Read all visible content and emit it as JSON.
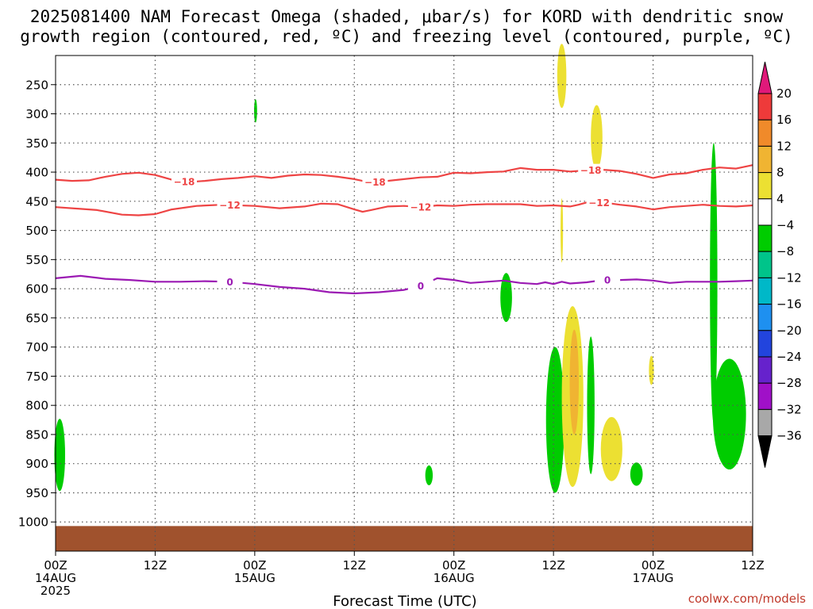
{
  "header": {
    "title_line1": "2025081400 NAM Forecast Omega (shaded, μbar/s) for KORD with dendritic snow",
    "title_line2": "growth region (contoured, red, ºC) and freezing level (contoured, purple, ºC)"
  },
  "footer": {
    "xlabel": "Forecast Time (UTC)",
    "credit": "coolwx.com/models"
  },
  "chart_data": {
    "type": "heatmap",
    "title": "2025081400 NAM Forecast Omega (shaded, μbar/s) for KORD with dendritic snow growth region (contoured, red, ºC) and freezing level (contoured, purple, ºC)",
    "xlabel": "Forecast Time (UTC)",
    "ylabel": "",
    "x_range_hours": [
      0,
      84
    ],
    "y_range_hpa": [
      200,
      1050
    ],
    "y_ticks": [
      250,
      300,
      350,
      400,
      450,
      500,
      550,
      600,
      650,
      700,
      750,
      800,
      850,
      900,
      950,
      1000
    ],
    "x_ticks": [
      {
        "hour": 0,
        "lines": [
          "00Z",
          "14AUG",
          "2025"
        ]
      },
      {
        "hour": 12,
        "lines": [
          "12Z"
        ]
      },
      {
        "hour": 24,
        "lines": [
          "00Z",
          "15AUG"
        ]
      },
      {
        "hour": 36,
        "lines": [
          "12Z"
        ]
      },
      {
        "hour": 48,
        "lines": [
          "00Z",
          "16AUG"
        ]
      },
      {
        "hour": 60,
        "lines": [
          "12Z"
        ]
      },
      {
        "hour": 72,
        "lines": [
          "00Z",
          "17AUG"
        ]
      },
      {
        "hour": 84,
        "lines": [
          "12Z"
        ]
      }
    ],
    "grid": true,
    "colorbar": {
      "position": "right",
      "labels": [
        "20",
        "16",
        "12",
        "8",
        "4",
        "−4",
        "−8",
        "−12",
        "−16",
        "−20",
        "−24",
        "−28",
        "−32",
        "−36"
      ],
      "bands": [
        {
          "range": [
            16,
            20
          ],
          "color": "#ee3a3a"
        },
        {
          "range": [
            12,
            16
          ],
          "color": "#f08a2a"
        },
        {
          "range": [
            8,
            12
          ],
          "color": "#f0b432"
        },
        {
          "range": [
            4,
            8
          ],
          "color": "#ece032"
        },
        {
          "range": [
            -4,
            4
          ],
          "color": "#ffffff"
        },
        {
          "range": [
            -8,
            -4
          ],
          "color": "#00cc00"
        },
        {
          "range": [
            -12,
            -8
          ],
          "color": "#00c48a"
        },
        {
          "range": [
            -16,
            -12
          ],
          "color": "#00b8c8"
        },
        {
          "range": [
            -20,
            -16
          ],
          "color": "#1e90f0"
        },
        {
          "range": [
            -24,
            -20
          ],
          "color": "#2244dd"
        },
        {
          "range": [
            -28,
            -24
          ],
          "color": "#6622cc"
        },
        {
          "range": [
            -32,
            -28
          ],
          "color": "#a010c8"
        },
        {
          "range": [
            -36,
            -32
          ],
          "color": "#a8a8a8"
        }
      ],
      "top_arrow_color": "#e0197a",
      "bottom_arrow_color": "#000000"
    },
    "contours": [
      {
        "name": "-18",
        "color": "#ee4444",
        "points": [
          [
            0,
            413
          ],
          [
            2,
            415
          ],
          [
            4,
            414
          ],
          [
            6,
            408
          ],
          [
            8,
            403
          ],
          [
            10,
            401
          ],
          [
            12,
            405
          ],
          [
            14,
            413
          ],
          [
            16,
            417
          ],
          [
            18,
            415
          ],
          [
            20,
            412
          ],
          [
            22,
            410
          ],
          [
            24,
            407
          ],
          [
            26,
            410
          ],
          [
            28,
            406
          ],
          [
            30,
            404
          ],
          [
            32,
            405
          ],
          [
            34,
            408
          ],
          [
            36,
            412
          ],
          [
            38,
            418
          ],
          [
            40,
            415
          ],
          [
            42,
            412
          ],
          [
            44,
            409
          ],
          [
            46,
            408
          ],
          [
            48,
            401
          ],
          [
            50,
            402
          ],
          [
            52,
            400
          ],
          [
            54,
            399
          ],
          [
            56,
            393
          ],
          [
            58,
            396
          ],
          [
            60,
            396
          ],
          [
            62,
            399
          ],
          [
            64,
            397
          ],
          [
            66,
            396
          ],
          [
            68,
            398
          ],
          [
            70,
            403
          ],
          [
            72,
            410
          ],
          [
            74,
            404
          ],
          [
            76,
            402
          ],
          [
            78,
            396
          ],
          [
            80,
            392
          ],
          [
            82,
            394
          ],
          [
            84,
            388
          ]
        ],
        "labels": [
          {
            "x": 15.5,
            "text": "−18"
          },
          {
            "x": 38.5,
            "text": "−18"
          },
          {
            "x": 64.5,
            "text": "−18"
          }
        ]
      },
      {
        "name": "-12",
        "color": "#ee4444",
        "points": [
          [
            0,
            460
          ],
          [
            3,
            463
          ],
          [
            5,
            465
          ],
          [
            8,
            473
          ],
          [
            10,
            474
          ],
          [
            12,
            472
          ],
          [
            14,
            464
          ],
          [
            17,
            458
          ],
          [
            20,
            456
          ],
          [
            24,
            458
          ],
          [
            27,
            462
          ],
          [
            30,
            459
          ],
          [
            32,
            454
          ],
          [
            34,
            455
          ],
          [
            36,
            464
          ],
          [
            37,
            468
          ],
          [
            38,
            465
          ],
          [
            40,
            459
          ],
          [
            42,
            458
          ],
          [
            44,
            460
          ],
          [
            46,
            457
          ],
          [
            48,
            458
          ],
          [
            50,
            456
          ],
          [
            52,
            455
          ],
          [
            54,
            455
          ],
          [
            56,
            455
          ],
          [
            58,
            458
          ],
          [
            60,
            457
          ],
          [
            62,
            459
          ],
          [
            63,
            456
          ],
          [
            64,
            452
          ],
          [
            66,
            452
          ],
          [
            68,
            456
          ],
          [
            70,
            459
          ],
          [
            72,
            464
          ],
          [
            74,
            460
          ],
          [
            76,
            458
          ],
          [
            78,
            456
          ],
          [
            80,
            458
          ],
          [
            82,
            459
          ],
          [
            84,
            457
          ]
        ],
        "labels": [
          {
            "x": 21,
            "text": "−12"
          },
          {
            "x": 44,
            "text": "−12"
          },
          {
            "x": 65.5,
            "text": "−12"
          }
        ]
      },
      {
        "name": "0",
        "color": "#9b1ab3",
        "points": [
          [
            0,
            582
          ],
          [
            3,
            578
          ],
          [
            6,
            583
          ],
          [
            9,
            585
          ],
          [
            12,
            588
          ],
          [
            15,
            588
          ],
          [
            18,
            587
          ],
          [
            21,
            588
          ],
          [
            24,
            592
          ],
          [
            27,
            597
          ],
          [
            30,
            600
          ],
          [
            33,
            606
          ],
          [
            36,
            608
          ],
          [
            39,
            606
          ],
          [
            42,
            602
          ],
          [
            44,
            595
          ],
          [
            46,
            582
          ],
          [
            48,
            585
          ],
          [
            50,
            590
          ],
          [
            52,
            588
          ],
          [
            54,
            586
          ],
          [
            56,
            590
          ],
          [
            58,
            592
          ],
          [
            59,
            589
          ],
          [
            60,
            592
          ],
          [
            61,
            588
          ],
          [
            62,
            591
          ],
          [
            64,
            589
          ],
          [
            66,
            585
          ],
          [
            68,
            585
          ],
          [
            70,
            584
          ],
          [
            72,
            586
          ],
          [
            74,
            590
          ],
          [
            76,
            588
          ],
          [
            78,
            588
          ],
          [
            80,
            588
          ],
          [
            82,
            587
          ],
          [
            84,
            586
          ]
        ],
        "labels": [
          {
            "x": 21,
            "text": "0"
          },
          {
            "x": 44,
            "text": "0"
          },
          {
            "x": 66.5,
            "text": "0"
          }
        ]
      }
    ],
    "omega_areas": [
      {
        "center": [
          24.1,
          295
        ],
        "dx": 0.18,
        "dy": 20,
        "color": "#00cc00"
      },
      {
        "center": [
          0.5,
          885
        ],
        "dx": 0.65,
        "dy": 62,
        "color": "#00cc00"
      },
      {
        "center": [
          45.0,
          920
        ],
        "dx": 0.45,
        "dy": 17,
        "color": "#00cc00"
      },
      {
        "center": [
          54.3,
          615
        ],
        "dx": 0.7,
        "dy": 42,
        "color": "#00cc00"
      },
      {
        "center": [
          60.2,
          825
        ],
        "dx": 1.1,
        "dy": 125,
        "color": "#00cc00"
      },
      {
        "center": [
          64.5,
          800
        ],
        "dx": 0.45,
        "dy": 118,
        "color": "#00cc00"
      },
      {
        "center": [
          70.0,
          918
        ],
        "dx": 0.75,
        "dy": 20,
        "color": "#00cc00"
      },
      {
        "center": [
          79.3,
          590
        ],
        "dx": 0.45,
        "dy": 240,
        "color": "#00cc00"
      },
      {
        "center": [
          81.2,
          815
        ],
        "dx": 2.0,
        "dy": 95,
        "color": "#00cc00"
      },
      {
        "center": [
          61.0,
          235
        ],
        "dx": 0.55,
        "dy": 55,
        "color": "#ece032"
      },
      {
        "center": [
          65.2,
          340
        ],
        "dx": 0.7,
        "dy": 55,
        "color": "#ece032"
      },
      {
        "center": [
          61.0,
          500
        ],
        "dx": 0.15,
        "dy": 55,
        "color": "#ece032"
      },
      {
        "center": [
          62.3,
          785
        ],
        "dx": 1.3,
        "dy": 155,
        "color": "#ece032"
      },
      {
        "center": [
          62.5,
          760
        ],
        "dx": 0.55,
        "dy": 90,
        "color": "#f0b432"
      },
      {
        "center": [
          67.0,
          875
        ],
        "dx": 1.3,
        "dy": 55,
        "color": "#ece032"
      },
      {
        "center": [
          71.8,
          740
        ],
        "dx": 0.3,
        "dy": 25,
        "color": "#ece032"
      }
    ],
    "surface": {
      "top_hpa": 1007,
      "color": "#a0522d"
    }
  }
}
